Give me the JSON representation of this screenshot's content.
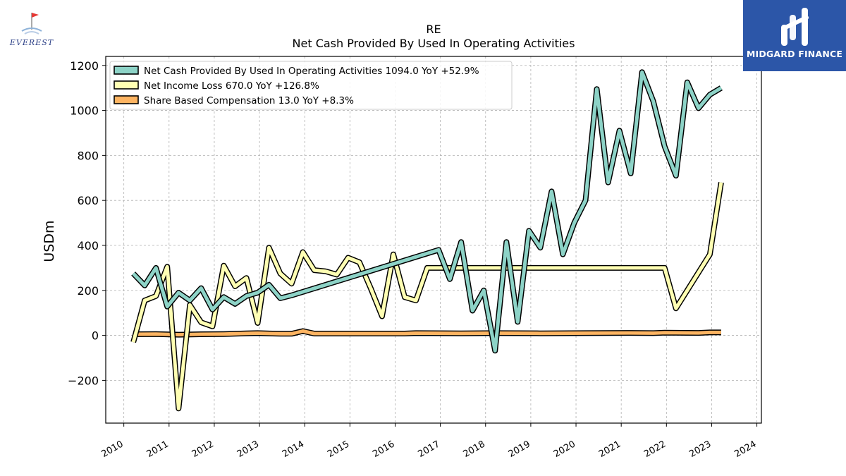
{
  "logos": {
    "left_text": "EVEREST",
    "right_text": "MIDGARD FINANCE",
    "right_bg": "#2c56a8"
  },
  "chart_data": {
    "type": "line",
    "title": "RE",
    "subtitle": "Net Cash Provided By Used In Operating Activities",
    "ylabel": "USDm",
    "xlabel": "",
    "xlim": [
      2009.6,
      2024.1
    ],
    "ylim": [
      -390,
      1240
    ],
    "x_ticks": [
      "2010",
      "2011",
      "2012",
      "2013",
      "2014",
      "2015",
      "2016",
      "2017",
      "2018",
      "2019",
      "2020",
      "2021",
      "2022",
      "2023",
      "2024"
    ],
    "y_ticks": [
      -200,
      0,
      200,
      400,
      600,
      800,
      1000,
      1200
    ],
    "y_tick_labels": [
      "−200",
      "0",
      "200",
      "400",
      "600",
      "800",
      "1000",
      "1200"
    ],
    "grid": true,
    "legend_position": "top-left",
    "series": [
      {
        "name": "Net Cash Provided By Used In Operating Activities",
        "legend": "Net Cash Provided By Used In Operating Activities  1094.0 YoY +52.9%",
        "color": "#8dd3c7",
        "points": [
          [
            2010.21,
            275
          ],
          [
            2010.46,
            222
          ],
          [
            2010.71,
            300
          ],
          [
            2010.96,
            128
          ],
          [
            2011.21,
            190
          ],
          [
            2011.46,
            155
          ],
          [
            2011.71,
            210
          ],
          [
            2011.96,
            115
          ],
          [
            2012.21,
            170
          ],
          [
            2012.46,
            140
          ],
          [
            2012.71,
            175
          ],
          [
            2012.96,
            190
          ],
          [
            2013.21,
            225
          ],
          [
            2013.46,
            165
          ],
          [
            2013.71,
            178
          ],
          [
            2016.96,
            380
          ],
          [
            2017.21,
            250
          ],
          [
            2017.46,
            415
          ],
          [
            2017.71,
            110
          ],
          [
            2017.96,
            200
          ],
          [
            2018.21,
            -68
          ],
          [
            2018.46,
            415
          ],
          [
            2018.71,
            60
          ],
          [
            2018.96,
            465
          ],
          [
            2019.21,
            390
          ],
          [
            2019.46,
            640
          ],
          [
            2019.71,
            360
          ],
          [
            2019.96,
            500
          ],
          [
            2020.21,
            600
          ],
          [
            2020.46,
            1095
          ],
          [
            2020.71,
            680
          ],
          [
            2020.96,
            910
          ],
          [
            2021.21,
            720
          ],
          [
            2021.46,
            1170
          ],
          [
            2021.71,
            1040
          ],
          [
            2021.96,
            840
          ],
          [
            2022.21,
            710
          ],
          [
            2022.46,
            1125
          ],
          [
            2022.71,
            1010
          ],
          [
            2022.96,
            1070
          ],
          [
            2023.21,
            1100
          ]
        ]
      },
      {
        "name": "Net Income Loss",
        "legend": "Net Income Loss  670.0 YoY +126.8%",
        "color": "#ffffb3",
        "points": [
          [
            2010.21,
            -30
          ],
          [
            2010.46,
            155
          ],
          [
            2010.71,
            175
          ],
          [
            2010.96,
            305
          ],
          [
            2011.21,
            -325
          ],
          [
            2011.46,
            135
          ],
          [
            2011.71,
            58
          ],
          [
            2011.96,
            40
          ],
          [
            2012.21,
            310
          ],
          [
            2012.46,
            218
          ],
          [
            2012.71,
            255
          ],
          [
            2012.96,
            55
          ],
          [
            2013.21,
            390
          ],
          [
            2013.46,
            275
          ],
          [
            2013.71,
            230
          ],
          [
            2013.96,
            370
          ],
          [
            2014.21,
            290
          ],
          [
            2014.46,
            285
          ],
          [
            2014.71,
            270
          ],
          [
            2014.96,
            345
          ],
          [
            2015.21,
            325
          ],
          [
            2015.46,
            210
          ],
          [
            2015.71,
            85
          ],
          [
            2015.96,
            360
          ],
          [
            2016.21,
            170
          ],
          [
            2016.46,
            155
          ],
          [
            2016.71,
            300
          ],
          [
            2021.96,
            300
          ],
          [
            2022.21,
            120
          ],
          [
            2022.96,
            360
          ],
          [
            2023.21,
            680
          ]
        ]
      },
      {
        "name": "Share Based Compensation",
        "legend": "Share Based Compensation  13.0 YoY +8.3%",
        "color": "#fdb462",
        "points": [
          [
            2010.21,
            5
          ],
          [
            2010.71,
            6
          ],
          [
            2011.21,
            3
          ],
          [
            2011.71,
            5
          ],
          [
            2012.21,
            6
          ],
          [
            2012.71,
            9
          ],
          [
            2012.96,
            10
          ],
          [
            2013.46,
            7
          ],
          [
            2013.71,
            7
          ],
          [
            2013.96,
            19
          ],
          [
            2014.21,
            8
          ],
          [
            2015.21,
            8
          ],
          [
            2016.21,
            8
          ],
          [
            2016.46,
            10
          ],
          [
            2017.46,
            9
          ],
          [
            2018.21,
            10
          ],
          [
            2019.21,
            9
          ],
          [
            2020.21,
            10
          ],
          [
            2021.21,
            11
          ],
          [
            2021.71,
            10
          ],
          [
            2021.96,
            12
          ],
          [
            2022.71,
            11
          ],
          [
            2022.96,
            13
          ],
          [
            2023.21,
            13
          ]
        ]
      }
    ]
  }
}
